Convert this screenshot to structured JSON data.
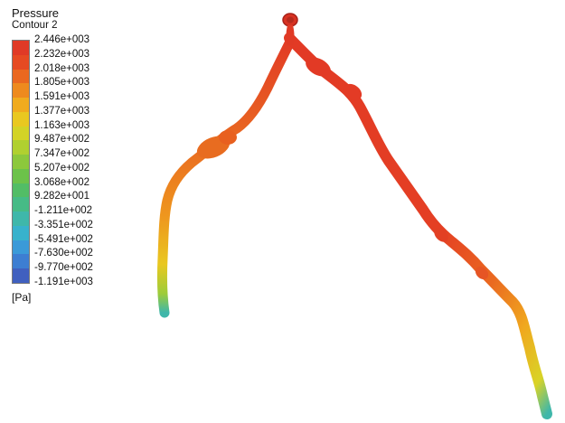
{
  "legend": {
    "title": "Pressure",
    "subtitle": "Contour 2",
    "unit": "[Pa]",
    "tick_labels": [
      "2.446e+003",
      "2.232e+003",
      "2.018e+003",
      "1.805e+003",
      "1.591e+003",
      "1.377e+003",
      "1.163e+003",
      "9.487e+002",
      "7.347e+002",
      "5.207e+002",
      "3.068e+002",
      "9.282e+001",
      "-1.211e+002",
      "-3.351e+002",
      "-5.491e+002",
      "-7.630e+002",
      "-9.770e+002",
      "-1.191e+003"
    ],
    "colors": [
      "#e03a26",
      "#e64a22",
      "#ea6820",
      "#ee8a1e",
      "#f0ab1e",
      "#e9c820",
      "#d3d326",
      "#b0d030",
      "#8cc83c",
      "#6cc24a",
      "#52bd66",
      "#46bb86",
      "#3fb7aa",
      "#38b2cc",
      "#3b9ad8",
      "#3d7ed2",
      "#4060bf"
    ]
  }
}
